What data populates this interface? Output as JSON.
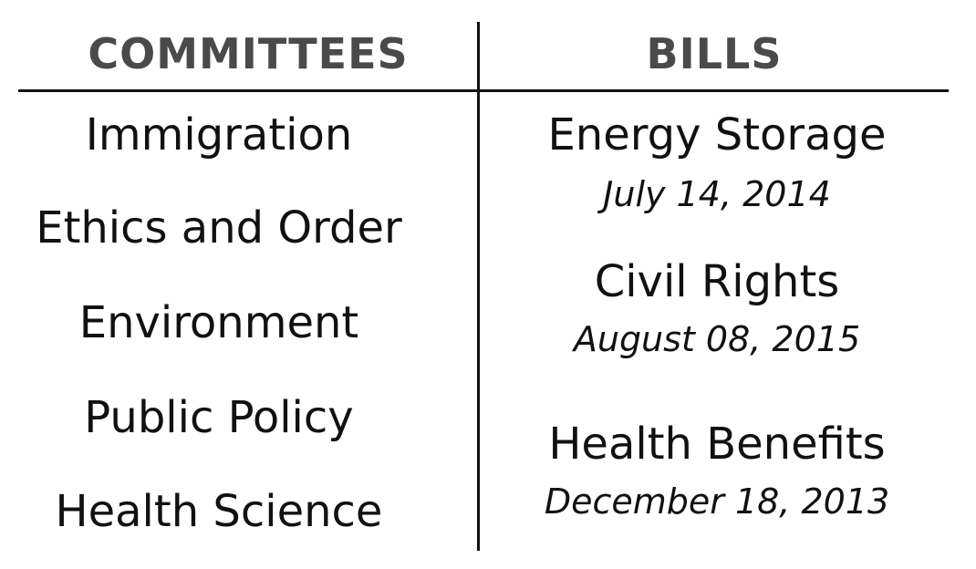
{
  "headers": {
    "committees": "COMMITTEES",
    "bills": "BILLS"
  },
  "committees": [
    "Immigration",
    "Ethics and Order",
    "Environment",
    "Public Policy",
    "Health Science"
  ],
  "bills": [
    {
      "name": "Energy Storage",
      "date": "July 14, 2014"
    },
    {
      "name": "Civil Rights",
      "date": "August 08, 2015"
    },
    {
      "name": "Health Benefits",
      "date": "December 18, 2013"
    }
  ]
}
